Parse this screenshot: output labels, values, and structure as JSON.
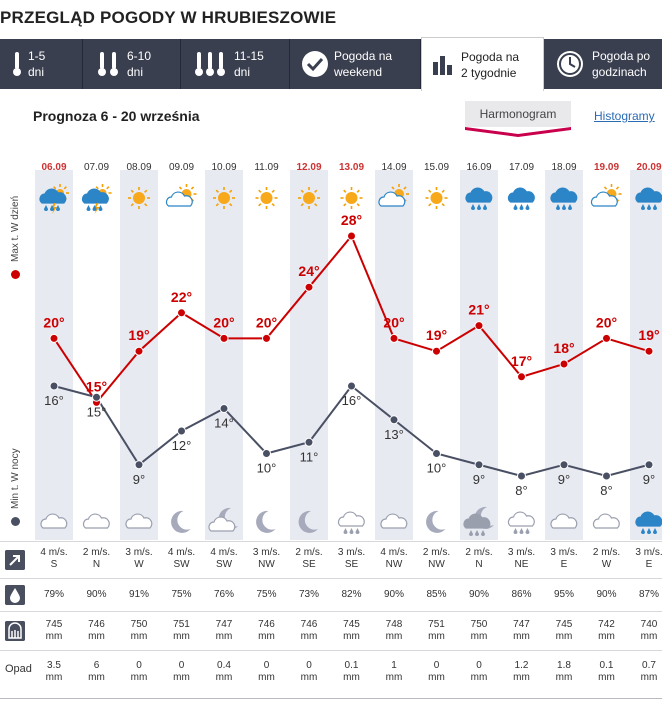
{
  "title": "PRZEGLĄD POGODY W HRUBIESZOWIE",
  "tabs": [
    {
      "label_1": "1-5",
      "label_2": "dni",
      "icon": "thermometer-icon"
    },
    {
      "label_1": "6-10",
      "label_2": "dni",
      "icon": "thermometer-icon"
    },
    {
      "label_1": "11-15",
      "label_2": "dni",
      "icon": "thermometer-icon"
    },
    {
      "label_1": "Pogoda na",
      "label_2": "weekend",
      "icon": "checkmark-icon"
    },
    {
      "label_1": "Pogoda na",
      "label_2": "2 tygodnie",
      "icon": "bar-chart-icon",
      "active": true
    },
    {
      "label_1": "Pogoda po",
      "label_2": "godzinach",
      "icon": "clock-icon"
    }
  ],
  "subtitle": "Prognoza 6 - 20 września",
  "view_tabs": {
    "harmonogram": "Harmonogram",
    "histogramy": "Histogramy"
  },
  "axis_labels": {
    "max": "Max t. W dzień",
    "min": "Min t. W nocy"
  },
  "colors": {
    "max_line": "#cc0000",
    "min_line": "#4a5063",
    "weekend": "#cc3333",
    "column_shade": "#e8eaf2",
    "tab_bg": "#3a3f4f"
  },
  "chart_data": {
    "type": "line",
    "x": [
      "06.09",
      "07.09",
      "08.09",
      "09.09",
      "10.09",
      "11.09",
      "12.09",
      "13.09",
      "14.09",
      "15.09",
      "16.09",
      "17.09",
      "18.09",
      "19.09",
      "20.09"
    ],
    "weekend": [
      true,
      false,
      false,
      false,
      false,
      false,
      true,
      true,
      false,
      false,
      false,
      false,
      false,
      true,
      true
    ],
    "series": [
      {
        "name": "Max t. W dzień",
        "values": [
          20,
          15,
          19,
          22,
          20,
          20,
          24,
          28,
          20,
          19,
          21,
          17,
          18,
          20,
          19
        ]
      },
      {
        "name": "Min t. W nocy",
        "values": [
          16,
          15,
          9,
          12,
          14,
          10,
          11,
          16,
          13,
          10,
          9,
          8,
          9,
          8,
          9
        ]
      }
    ],
    "day_icons": [
      "rain-sun-icon",
      "rain-sun-icon",
      "sun-icon",
      "sun-cloud-icon",
      "sun-icon",
      "sun-icon",
      "sun-icon",
      "sun-icon",
      "sun-cloud-icon",
      "sun-icon",
      "rain-icon",
      "rain-icon",
      "rain-icon",
      "sun-cloud-icon",
      "rain-icon"
    ],
    "night_icons": [
      "cloud-icon",
      "cloud-icon",
      "cloud-icon",
      "moon-icon",
      "cloud-moon-icon",
      "moon-icon",
      "moon-icon",
      "rain-cloud-icon",
      "cloud-icon",
      "moon-icon",
      "rain-moon-icon",
      "rain-cloud-icon",
      "cloud-icon",
      "cloud-icon",
      "rain-icon"
    ]
  },
  "rows": {
    "wind": {
      "icon": "wind-arrow-icon",
      "speed": [
        "4 m/s.",
        "2 m/s.",
        "3 m/s.",
        "4 m/s.",
        "4 m/s.",
        "3 m/s.",
        "2 m/s.",
        "3 m/s.",
        "4 m/s.",
        "2 m/s.",
        "2 m/s.",
        "3 m/s.",
        "3 m/s.",
        "2 m/s.",
        "3 m/s."
      ],
      "dir": [
        "S",
        "N",
        "W",
        "SW",
        "SW",
        "NW",
        "SE",
        "SE",
        "NW",
        "NW",
        "N",
        "NE",
        "E",
        "W",
        "E"
      ]
    },
    "humidity": {
      "icon": "drop-icon",
      "values": [
        "79%",
        "90%",
        "91%",
        "75%",
        "76%",
        "75%",
        "73%",
        "82%",
        "90%",
        "85%",
        "90%",
        "86%",
        "95%",
        "90%",
        "87%"
      ]
    },
    "pressure": {
      "icon": "barometer-icon",
      "values": [
        "745",
        "746",
        "750",
        "751",
        "747",
        "746",
        "746",
        "745",
        "748",
        "751",
        "750",
        "747",
        "745",
        "742",
        "740"
      ],
      "unit": "mm"
    },
    "precip": {
      "label": "Opad",
      "values": [
        "3.5",
        "6",
        "0",
        "0",
        "0.4",
        "0",
        "0",
        "0.1",
        "1",
        "0",
        "0",
        "1.2",
        "1.8",
        "0.1",
        "0.7"
      ],
      "unit": "mm"
    }
  }
}
